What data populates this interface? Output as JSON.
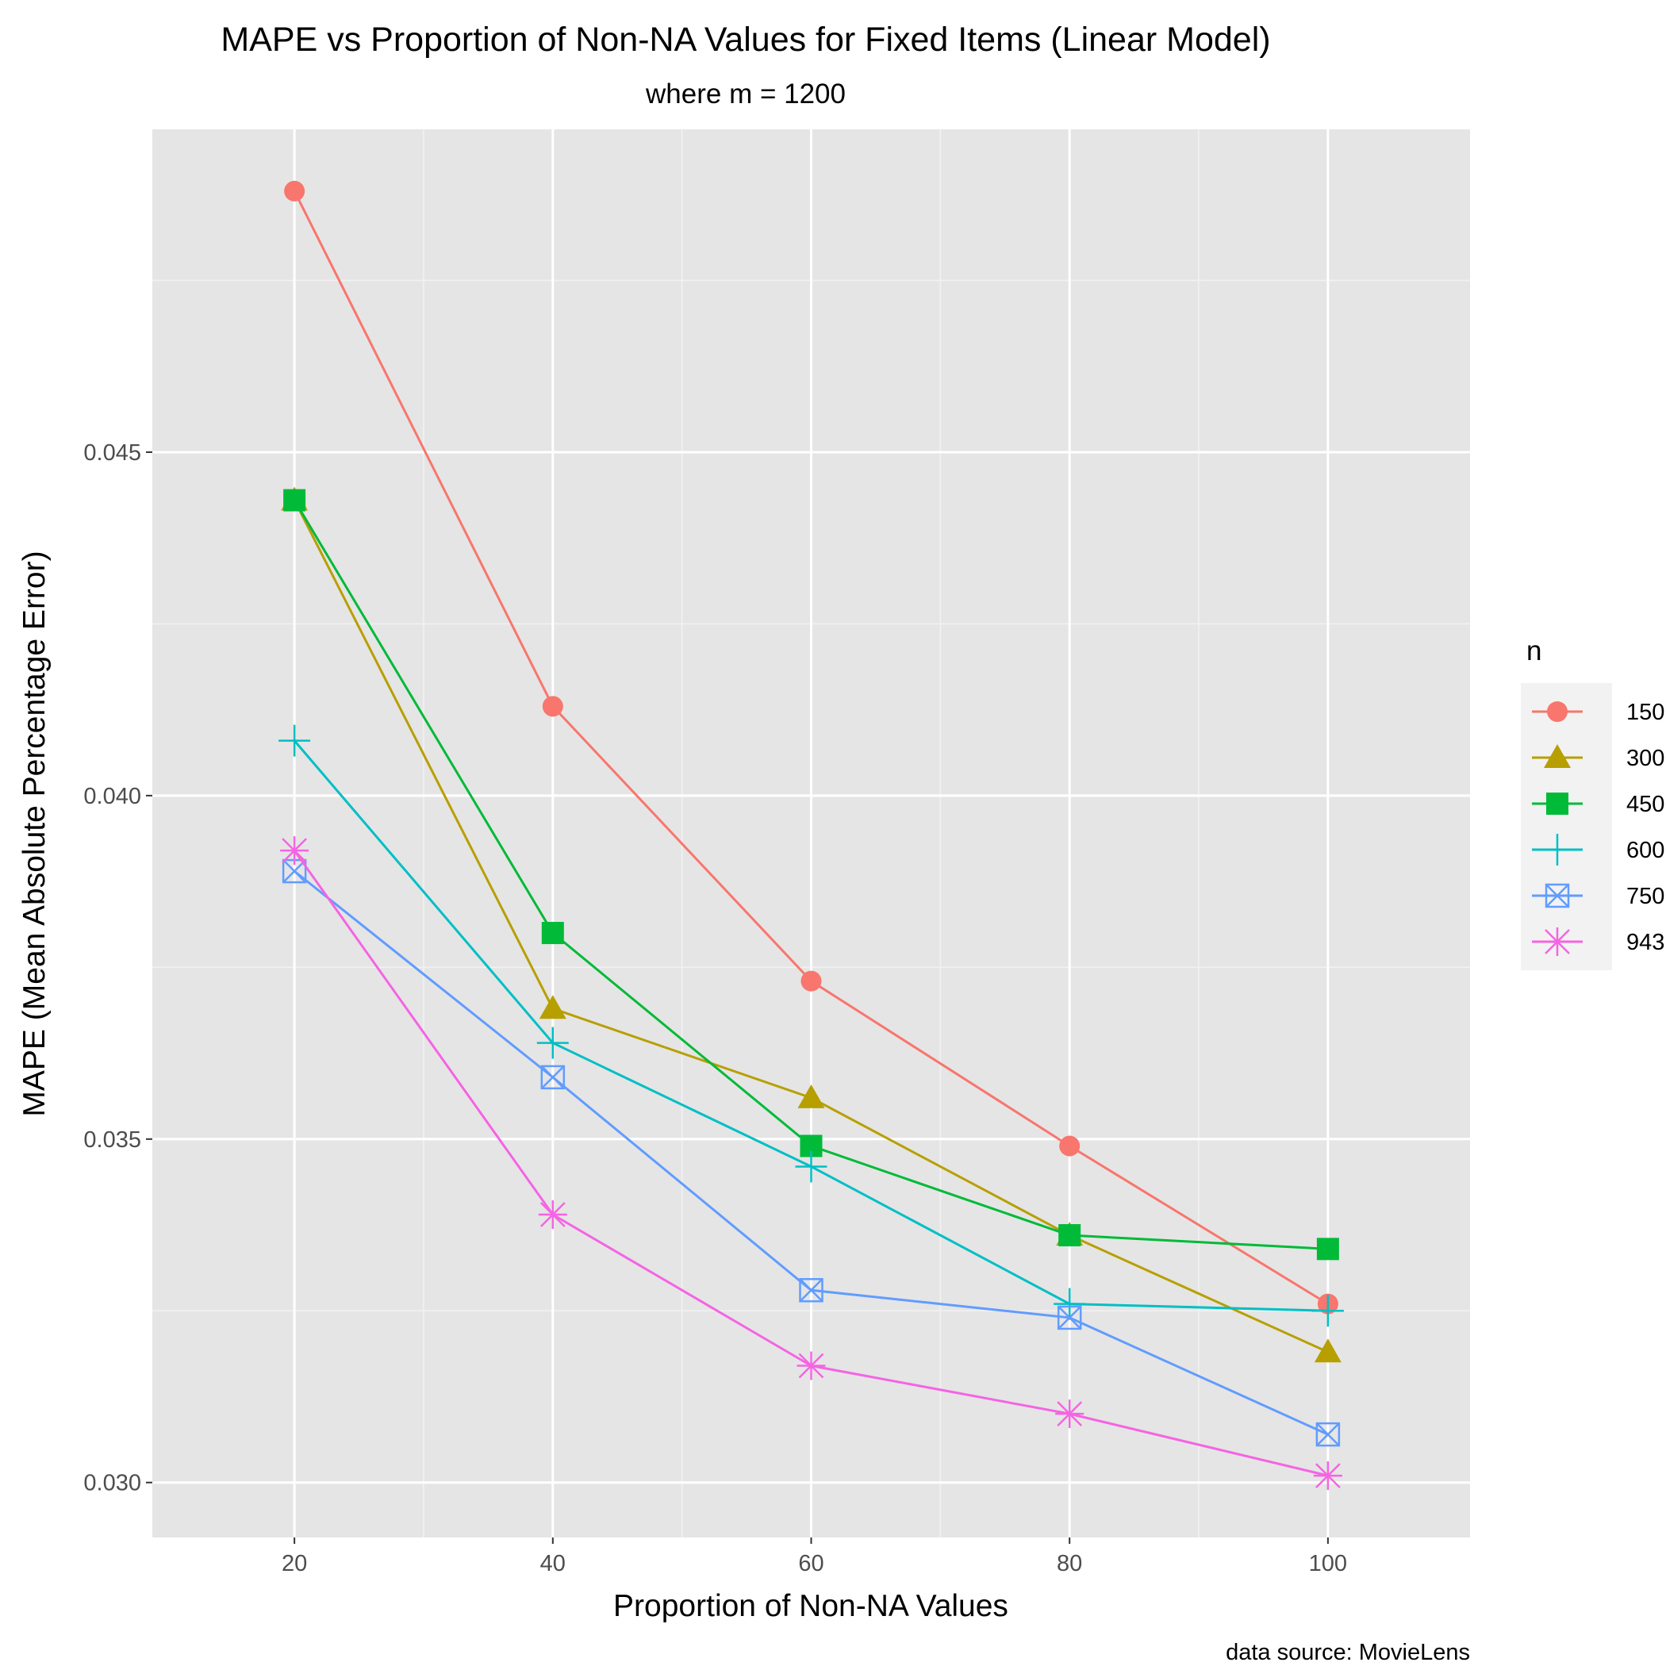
{
  "chart_data": {
    "type": "line",
    "title": "MAPE vs Proportion of Non-NA Values for Fixed Items (Linear Model)",
    "subtitle": "where m = 1200",
    "xlabel": "Proportion of Non-NA Values",
    "ylabel": "MAPE (Mean Absolute Percentage Error)",
    "caption": "data source: MovieLens",
    "legend_title": "n",
    "legend_position": "right",
    "grid": true,
    "background": "#e5e5e5",
    "xlim": [
      9,
      111
    ],
    "ylim": [
      0.0292,
      0.0497
    ],
    "x": [
      20,
      40,
      60,
      80,
      100
    ],
    "x_ticks": [
      20,
      40,
      60,
      80,
      100
    ],
    "x_tick_labels": [
      "20",
      "40",
      "60",
      "80",
      "100"
    ],
    "y_ticks": [
      0.03,
      0.035,
      0.04,
      0.045
    ],
    "y_tick_labels": [
      "0.030",
      "0.035",
      "0.040",
      "0.045"
    ],
    "series": [
      {
        "name": "150",
        "color": "#F8766D",
        "shape": "circle",
        "values": [
          0.0488,
          0.0413,
          0.0373,
          0.0349,
          0.0326
        ]
      },
      {
        "name": "300",
        "color": "#B79F00",
        "shape": "triangle",
        "values": [
          0.0443,
          0.0369,
          0.0356,
          0.0336,
          0.0319
        ]
      },
      {
        "name": "450",
        "color": "#00BA38",
        "shape": "square",
        "values": [
          0.0443,
          0.038,
          0.0349,
          0.0336,
          0.0334
        ]
      },
      {
        "name": "600",
        "color": "#00BFC4",
        "shape": "plus",
        "values": [
          0.0408,
          0.0364,
          0.0346,
          0.0326,
          0.0325
        ]
      },
      {
        "name": "750",
        "color": "#619CFF",
        "shape": "square-cross",
        "values": [
          0.0389,
          0.0359,
          0.0328,
          0.0324,
          0.0307
        ]
      },
      {
        "name": "943",
        "color": "#F564E3",
        "shape": "asterisk",
        "values": [
          0.0392,
          0.0339,
          0.0317,
          0.031,
          0.0301
        ]
      }
    ]
  }
}
